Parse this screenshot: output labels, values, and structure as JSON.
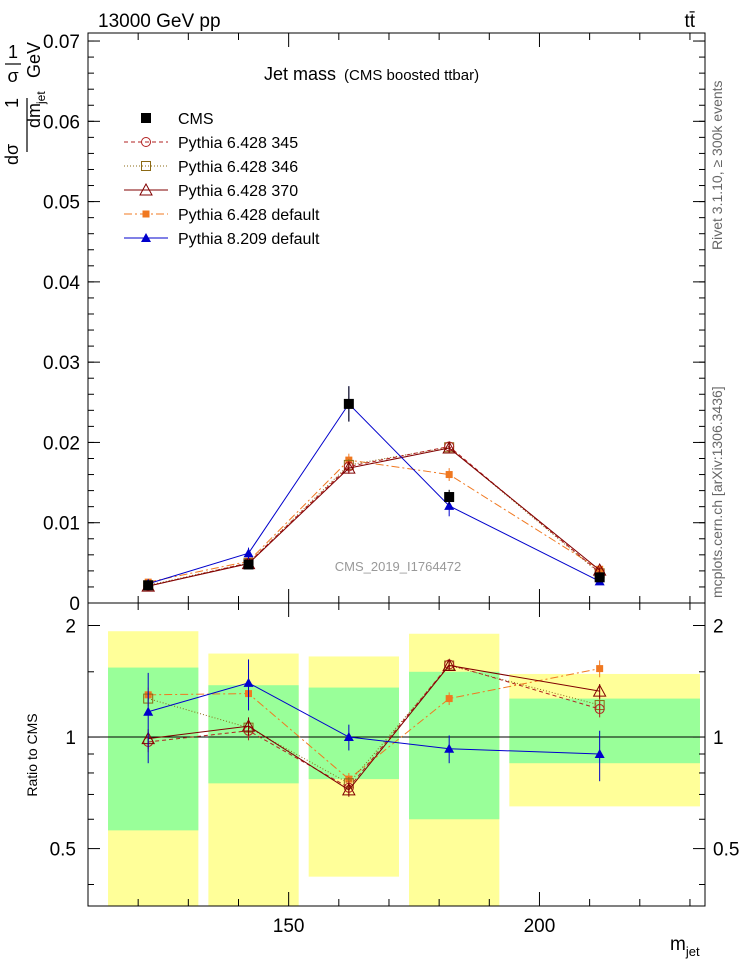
{
  "header": {
    "energy_label": "13000 GeV pp",
    "process_label": "tt̄",
    "side_label_top": "Rivet 3.1.10, ≥ 300k events",
    "side_label_bottom": "mcplots.cern.ch [arXiv:1306.3436]"
  },
  "chart_data": [
    {
      "type": "line",
      "title": "Jet mass",
      "subtitle": "(CMS boosted ttbar)",
      "watermark": "CMS_2019_I1764472",
      "ylabel_parts": [
        "1",
        "σ",
        "dσ",
        "dm",
        "jet",
        "1",
        "GeV"
      ],
      "xlabel_main": "m",
      "xlabel_sub": "jet",
      "xlim": [
        110,
        233
      ],
      "ylim": [
        0,
        0.071
      ],
      "y_ticks": [
        0,
        0.01,
        0.02,
        0.03,
        0.04,
        0.05,
        0.06,
        0.07
      ],
      "y_tick_labels": [
        "0",
        "0.01",
        "0.02",
        "0.03",
        "0.04",
        "0.05",
        "0.06",
        "0.07"
      ],
      "bins": [
        112,
        132,
        152,
        172,
        192,
        232
      ],
      "x": [
        122,
        142,
        162,
        182,
        212
      ],
      "colors": {
        "cms": "#000000",
        "p345": "#b22222",
        "p346": "#8b6914",
        "p370": "#800000",
        "pdef": "#f07820",
        "p8": "#0000cc"
      },
      "series": [
        {
          "name": "CMS",
          "key": "cms",
          "values": [
            0.0022,
            0.0048,
            0.0248,
            0.0132,
            0.0032
          ],
          "errors": [
            0.0003,
            0.0004,
            0.0022,
            0.0009,
            0.0003
          ]
        },
        {
          "name": "Pythia 6.428 345",
          "key": "p345",
          "values": [
            0.0021,
            0.005,
            0.017,
            0.0195,
            0.0038
          ],
          "errors": [
            0.0002,
            0.0004,
            0.0007,
            0.0006,
            0.0003
          ]
        },
        {
          "name": "Pythia 6.428 346",
          "key": "p346",
          "values": [
            0.0022,
            0.005,
            0.0172,
            0.0194,
            0.0037
          ],
          "errors": [
            0.0002,
            0.0004,
            0.0007,
            0.0006,
            0.0003
          ]
        },
        {
          "name": "Pythia 6.428 370",
          "key": "p370",
          "values": [
            0.0021,
            0.0049,
            0.0168,
            0.0193,
            0.0041
          ],
          "errors": [
            0.0002,
            0.0004,
            0.0007,
            0.0006,
            0.0003
          ]
        },
        {
          "name": "Pythia 6.428 default",
          "key": "pdef",
          "values": [
            0.0026,
            0.0052,
            0.0178,
            0.016,
            0.0042
          ],
          "errors": [
            0.0002,
            0.0004,
            0.0008,
            0.0008,
            0.0003
          ]
        },
        {
          "name": "Pythia 8.209 default",
          "key": "p8",
          "values": [
            0.0024,
            0.0062,
            0.0248,
            0.0121,
            0.0027
          ],
          "errors": [
            0.0003,
            0.0007,
            0.0022,
            0.0013,
            0.0004
          ]
        }
      ]
    },
    {
      "type": "line",
      "ylabel": "Ratio to CMS",
      "xlim": [
        110,
        233
      ],
      "ylim": [
        0.35,
        2.3
      ],
      "y_ticks": [
        0.5,
        1,
        2
      ],
      "y_tick_labels": [
        "0.5",
        "1",
        "2"
      ],
      "x_ticks": [
        150,
        200
      ],
      "x_tick_labels": [
        "150",
        "200"
      ],
      "bands": [
        {
          "x0": 112,
          "x1": 132,
          "green": [
            0.56,
            1.54
          ],
          "yellow": [
            0.35,
            1.93
          ]
        },
        {
          "x0": 132,
          "x1": 152,
          "green": [
            0.75,
            1.38
          ],
          "yellow": [
            0.35,
            1.68
          ]
        },
        {
          "x0": 152,
          "x1": 172,
          "green": [
            0.77,
            1.36
          ],
          "yellow": [
            0.42,
            1.65
          ]
        },
        {
          "x0": 172,
          "x1": 192,
          "green": [
            0.6,
            1.5
          ],
          "yellow": [
            0.35,
            1.9
          ]
        },
        {
          "x0": 192,
          "x1": 232,
          "green": [
            0.85,
            1.27
          ],
          "yellow": [
            0.65,
            1.48
          ]
        }
      ],
      "x": [
        122,
        142,
        162,
        182,
        212
      ],
      "series": [
        {
          "name": "Pythia 6.428 345",
          "key": "p345",
          "values": [
            0.97,
            1.04,
            0.73,
            1.57,
            1.19
          ],
          "errors": [
            0.06,
            0.06,
            0.03,
            0.04,
            0.06
          ]
        },
        {
          "name": "Pythia 6.428 346",
          "key": "p346",
          "values": [
            1.27,
            1.06,
            0.75,
            1.56,
            1.22
          ],
          "errors": [
            0.06,
            0.06,
            0.03,
            0.04,
            0.06
          ]
        },
        {
          "name": "Pythia 6.428 370",
          "key": "p370",
          "values": [
            0.99,
            1.07,
            0.72,
            1.56,
            1.33
          ],
          "errors": [
            0.06,
            0.06,
            0.03,
            0.04,
            0.06
          ]
        },
        {
          "name": "Pythia 6.428 default",
          "key": "pdef",
          "values": [
            1.3,
            1.31,
            0.77,
            1.27,
            1.53
          ],
          "errors": [
            0.06,
            0.06,
            0.03,
            0.05,
            0.08
          ]
        },
        {
          "name": "Pythia 8.209 default",
          "key": "p8",
          "values": [
            1.17,
            1.4,
            1.0,
            0.93,
            0.9
          ],
          "errors": [
            0.32,
            0.22,
            0.08,
            0.08,
            0.14
          ]
        }
      ]
    }
  ]
}
